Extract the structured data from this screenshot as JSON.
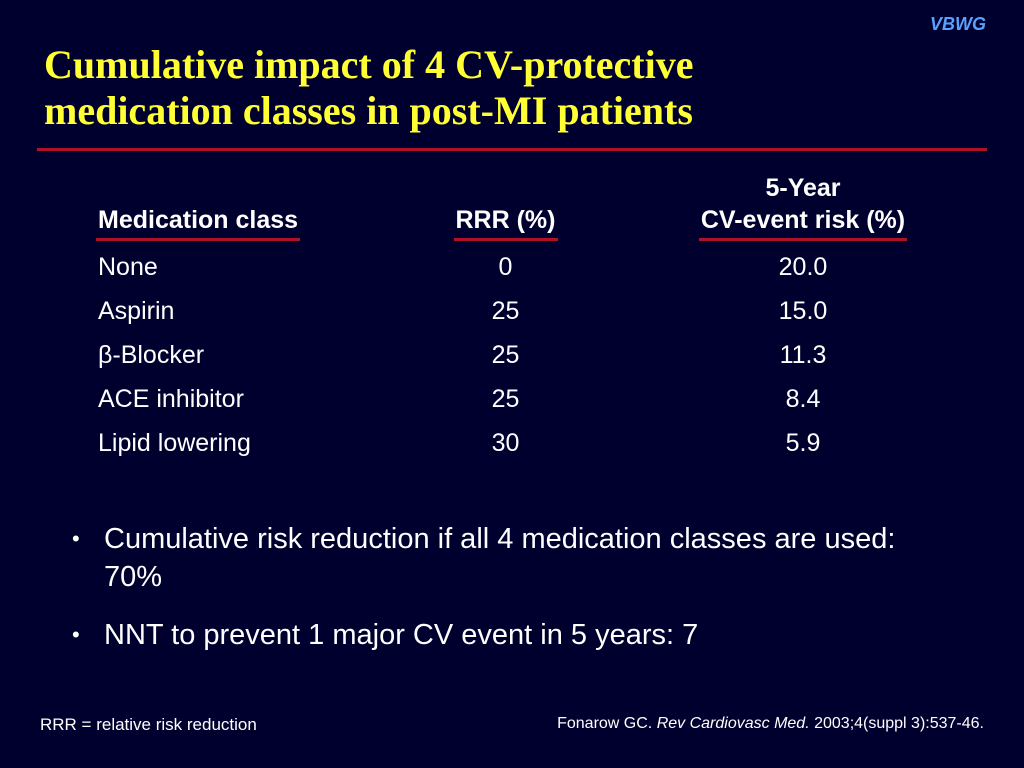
{
  "brand": "VBWG",
  "title_line1": "Cumulative impact of 4 CV-protective",
  "title_line2": "medication classes in post-MI patients",
  "table": {
    "headers": {
      "medication_class": "Medication class",
      "rrr": "RRR (%)",
      "risk_line1": "5-Year",
      "risk_line2": "CV-event risk (%)"
    },
    "rows": [
      {
        "name": "None",
        "rrr": "0",
        "risk": "20.0"
      },
      {
        "name": "Aspirin",
        "rrr": "25",
        "risk": "15.0"
      },
      {
        "name": "β-Blocker",
        "rrr": "25",
        "risk": "11.3"
      },
      {
        "name": "ACE inhibitor",
        "rrr": "25",
        "risk": "8.4"
      },
      {
        "name": "Lipid lowering",
        "rrr": "30",
        "risk": "5.9"
      }
    ]
  },
  "bullets": [
    "Cumulative risk reduction if all 4 medication classes are used: 70%",
    "NNT to prevent 1 major CV event in 5 years: 7"
  ],
  "footnote_left": "RRR = relative risk reduction",
  "citation": {
    "author": "Fonarow GC.",
    "journal": "Rev Cardiovasc Med.",
    "details": "2003;4(suppl 3):537-46."
  },
  "colors": {
    "background": "#00002e",
    "title": "#ffff33",
    "rule": "#b0102a",
    "brand": "#5aa0ff"
  }
}
